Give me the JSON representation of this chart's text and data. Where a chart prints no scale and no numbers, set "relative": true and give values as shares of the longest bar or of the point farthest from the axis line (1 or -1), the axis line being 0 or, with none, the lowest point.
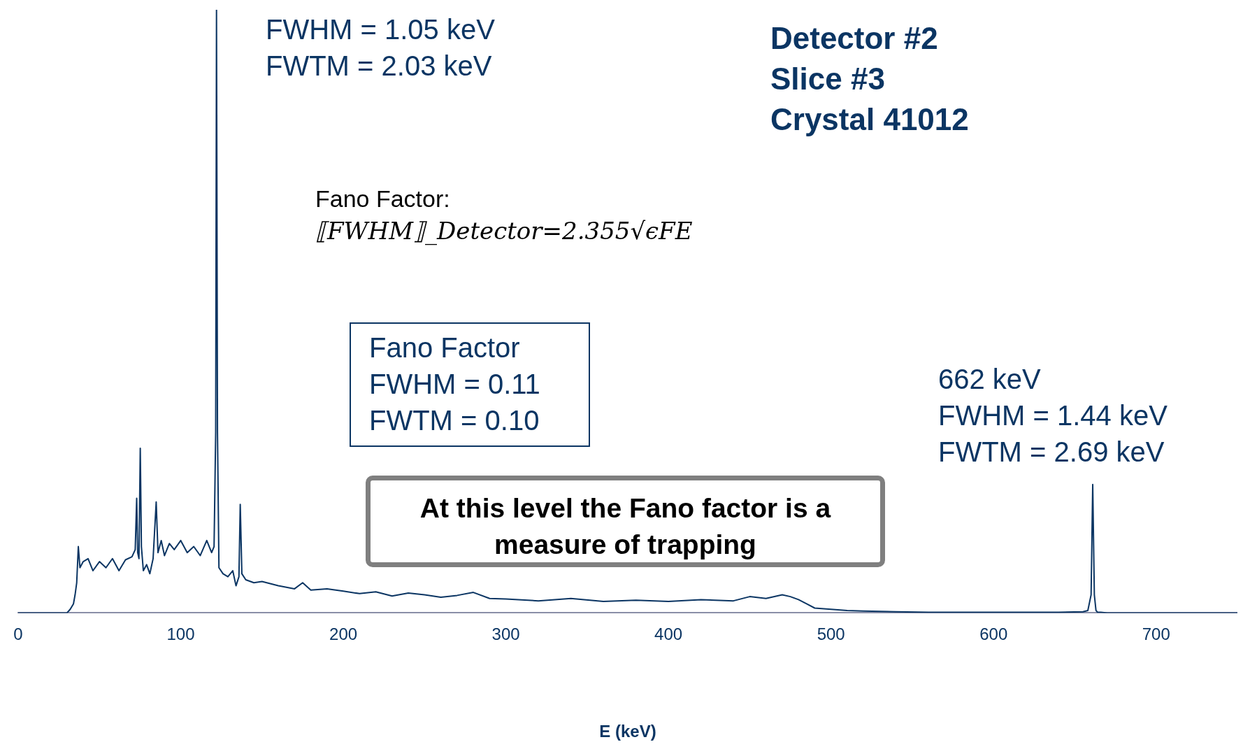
{
  "chart_data": {
    "type": "line",
    "relative": true,
    "xlabel": "E (keV)",
    "xlim": [
      0,
      750
    ],
    "xticks": [
      0,
      100,
      200,
      300,
      400,
      500,
      600,
      700
    ],
    "grid": false,
    "legend": false,
    "marker": "none",
    "line_style": "solid",
    "annotations": [
      "FWHM = 1.05 keV\nFWTM = 2.03 keV",
      "Detector #2\nSlice #3\nCrystal 41012",
      "Fano Factor:",
      "⟦FWHM⟧_Detector=2.355√ϵFE",
      "Fano Factor\nFWHM = 0.11\nFWTM = 0.10",
      "At this level the Fano factor is a measure of trapping",
      "662 keV\nFWHM = 1.44 keV\nFWTM = 2.69 keV"
    ],
    "series": [
      {
        "color": "#0b3563",
        "x": [
          0,
          30,
          32,
          34,
          35,
          36,
          37,
          38,
          40,
          43,
          46,
          50,
          54,
          58,
          62,
          66,
          70,
          72,
          72.9,
          73.5,
          74.3,
          75.1,
          75.8,
          77,
          79,
          81,
          83,
          84.9,
          86,
          88,
          90,
          93,
          96,
          100,
          104,
          108,
          112,
          116,
          119,
          120.5,
          121.5,
          122,
          122.6,
          123.5,
          126,
          129,
          132,
          134,
          135.8,
          136.6,
          137.6,
          140,
          145,
          150,
          160,
          170,
          175,
          180,
          190,
          200,
          210,
          220,
          230,
          240,
          250,
          260,
          270,
          280,
          290,
          300,
          320,
          340,
          360,
          380,
          400,
          420,
          440,
          450,
          460,
          470,
          475,
          480,
          485,
          490,
          500,
          510,
          520,
          540,
          560,
          580,
          600,
          620,
          640,
          655,
          658,
          660,
          661,
          662,
          663,
          664,
          666,
          670,
          700,
          750
        ],
        "values": [
          0,
          0,
          0.006,
          0.015,
          0.03,
          0.05,
          0.11,
          0.075,
          0.085,
          0.09,
          0.07,
          0.085,
          0.075,
          0.09,
          0.07,
          0.088,
          0.093,
          0.105,
          0.19,
          0.1,
          0.09,
          0.273,
          0.11,
          0.07,
          0.08,
          0.065,
          0.09,
          0.184,
          0.1,
          0.12,
          0.095,
          0.115,
          0.105,
          0.12,
          0.1,
          0.11,
          0.095,
          0.12,
          0.1,
          0.11,
          0.3,
          1,
          0.3,
          0.075,
          0.065,
          0.06,
          0.07,
          0.045,
          0.06,
          0.18,
          0.065,
          0.055,
          0.05,
          0.052,
          0.045,
          0.04,
          0.05,
          0.038,
          0.04,
          0.036,
          0.032,
          0.035,
          0.028,
          0.033,
          0.03,
          0.026,
          0.029,
          0.034,
          0.024,
          0.023,
          0.02,
          0.024,
          0.019,
          0.021,
          0.019,
          0.022,
          0.02,
          0.027,
          0.024,
          0.03,
          0.027,
          0.022,
          0.015,
          0.008,
          0.006,
          0.004,
          0.003,
          0.002,
          0.001,
          0.001,
          0.001,
          0.001,
          0.001,
          0.002,
          0.004,
          0.03,
          0.213,
          0.03,
          0.004,
          0.001,
          0.001,
          0,
          0,
          0
        ]
      }
    ]
  }
}
